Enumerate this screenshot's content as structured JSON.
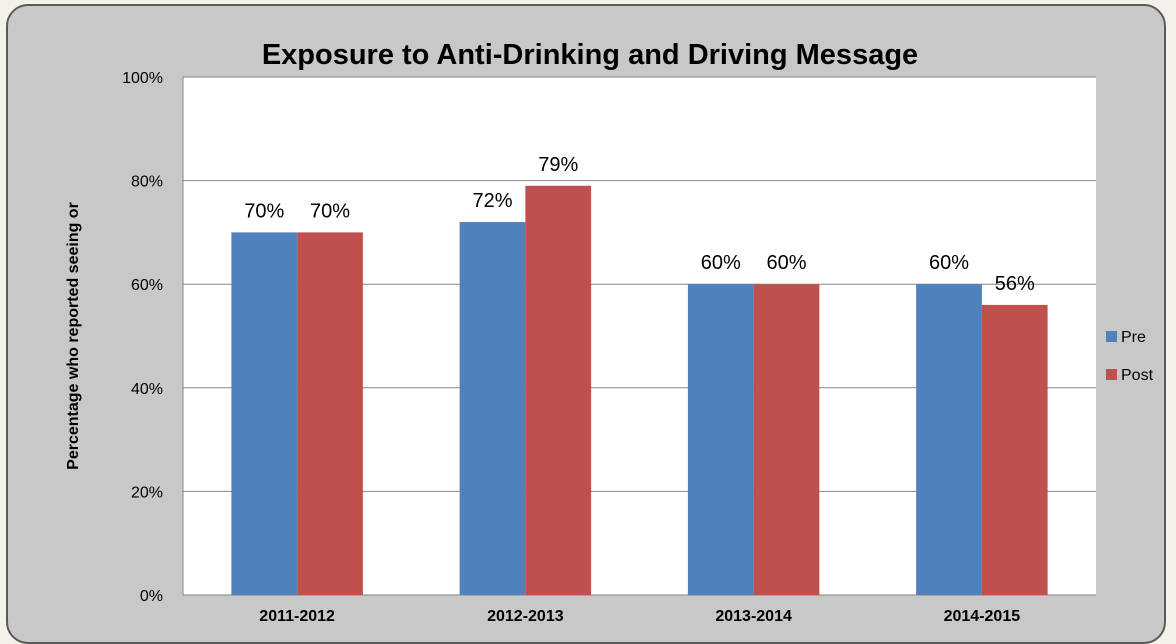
{
  "chart_data": {
    "type": "bar",
    "title": "Exposure to Anti-Drinking and Driving Message",
    "ylabel": "Percentage  who reported seeing or",
    "xlabel": "",
    "categories": [
      "2011-2012",
      "2012-2013",
      "2013-2014",
      "2014-2015"
    ],
    "series": [
      {
        "name": "Pre",
        "color": "#4f81bd",
        "values": [
          70,
          72,
          60,
          60
        ]
      },
      {
        "name": "Post",
        "color": "#c0504d",
        "values": [
          70,
          79,
          60,
          56
        ]
      }
    ],
    "ylim": [
      0,
      100
    ],
    "yticks": [
      0,
      20,
      40,
      60,
      80,
      100
    ],
    "value_suffix": "%",
    "grid": true,
    "legend": "right"
  }
}
